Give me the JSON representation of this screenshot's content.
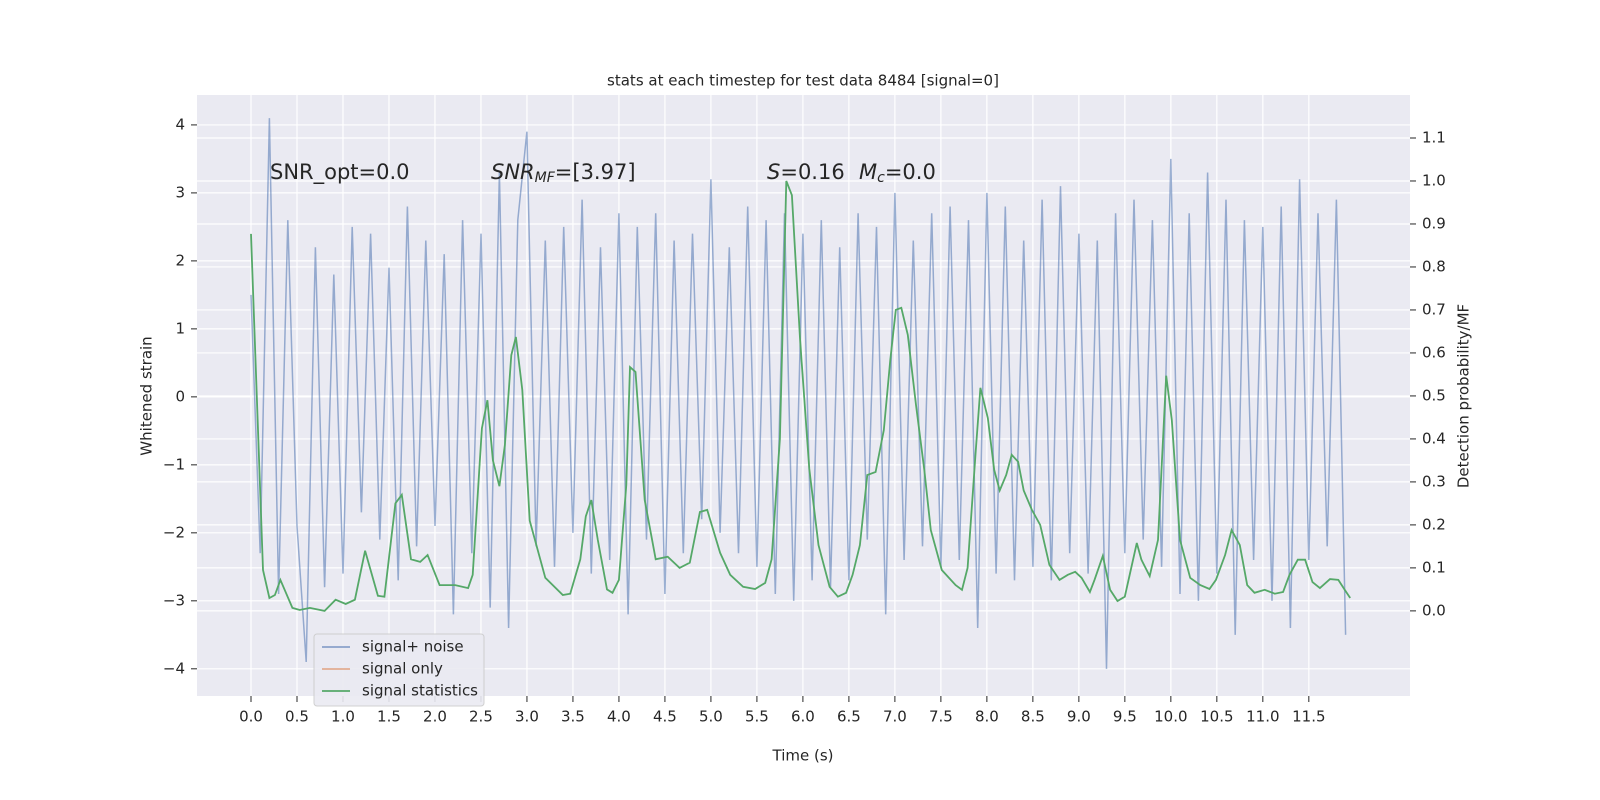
{
  "chart_data": {
    "type": "line",
    "title": "stats at each timestep for test data 8484 [signal=0]",
    "xlabel": "Time (s)",
    "ylabel": "Whitened strain",
    "y2label": "Detection probability/MF",
    "xlim": [
      -0.587,
      12.6
    ],
    "ylim": [
      -4.4,
      4.44
    ],
    "y2lim": [
      -0.198,
      1.2
    ],
    "xticks": [
      {
        "value": 0,
        "label": "0.0"
      },
      {
        "value": 0.5,
        "label": "0.5"
      },
      {
        "value": 1,
        "label": "1.0"
      },
      {
        "value": 1.5,
        "label": "1.5"
      },
      {
        "value": 2,
        "label": "2.0"
      },
      {
        "value": 2.5,
        "label": "2.5"
      },
      {
        "value": 3,
        "label": "3.0"
      },
      {
        "value": 3.5,
        "label": "3.5"
      },
      {
        "value": 4,
        "label": "4.0"
      },
      {
        "value": 4.5,
        "label": "4.5"
      },
      {
        "value": 5,
        "label": "5.0"
      },
      {
        "value": 5.5,
        "label": "5.5"
      },
      {
        "value": 6,
        "label": "6.0"
      },
      {
        "value": 6.5,
        "label": "6.5"
      },
      {
        "value": 7,
        "label": "7.0"
      },
      {
        "value": 7.5,
        "label": "7.5"
      },
      {
        "value": 8,
        "label": "8.0"
      },
      {
        "value": 8.5,
        "label": "8.5"
      },
      {
        "value": 9,
        "label": "9.0"
      },
      {
        "value": 9.5,
        "label": "9.5"
      },
      {
        "value": 10,
        "label": "10.0"
      },
      {
        "value": 10.5,
        "label": "10.5"
      },
      {
        "value": 11,
        "label": "11.0"
      },
      {
        "value": 11.5,
        "label": "11.5"
      }
    ],
    "yticks": [
      {
        "value": -4,
        "label": "−4"
      },
      {
        "value": -3,
        "label": "−3"
      },
      {
        "value": -2,
        "label": "−2"
      },
      {
        "value": -1,
        "label": "−1"
      },
      0,
      1,
      2,
      3,
      4
    ],
    "y2ticks": [
      {
        "value": 0,
        "label": "0.0"
      },
      {
        "value": 0.1,
        "label": "0.1"
      },
      {
        "value": 0.2,
        "label": "0.2"
      },
      {
        "value": 0.3,
        "label": "0.3"
      },
      {
        "value": 0.4,
        "label": "0.4"
      },
      {
        "value": 0.5,
        "label": "0.5"
      },
      {
        "value": 0.6,
        "label": "0.6"
      },
      {
        "value": 0.7,
        "label": "0.7"
      },
      {
        "value": 0.8,
        "label": "0.8"
      },
      {
        "value": 0.9,
        "label": "0.9"
      },
      {
        "value": 1,
        "label": "1.0"
      },
      {
        "value": 1.1,
        "label": "1.1"
      }
    ],
    "grid": true,
    "legend": "lower left",
    "annotations": [
      {
        "text": "SNR_opt=0.0"
      },
      {
        "base": "SNR",
        "sub": "MF",
        "rest": "=[3.97]"
      },
      {
        "base": "S",
        "rest": "=0.16"
      },
      {
        "base": "M",
        "sub": "c",
        "rest": "=0.0"
      }
    ],
    "series": [
      {
        "name": "signal+ noise",
        "color": "#4c72b0",
        "x": [
          0,
          0.1,
          0.2,
          0.3,
          0.4,
          0.5,
          0.6,
          0.7,
          0.8,
          0.9,
          1,
          1.1,
          1.2,
          1.3,
          1.4,
          1.5,
          1.6,
          1.7,
          1.8,
          1.9,
          2,
          2.1,
          2.2,
          2.3,
          2.4,
          2.5,
          2.6,
          2.7,
          2.8,
          2.9,
          3,
          3.1,
          3.2,
          3.3,
          3.4,
          3.5,
          3.6,
          3.7,
          3.8,
          3.9,
          4,
          4.1,
          4.2,
          4.3,
          4.4,
          4.5,
          4.6,
          4.7,
          4.8,
          4.9,
          5,
          5.1,
          5.2,
          5.3,
          5.4,
          5.5,
          5.6,
          5.7,
          5.8,
          5.9,
          6,
          6.1,
          6.2,
          6.3,
          6.4,
          6.5,
          6.6,
          6.7,
          6.8,
          6.9,
          7,
          7.1,
          7.2,
          7.3,
          7.4,
          7.5,
          7.6,
          7.7,
          7.8,
          7.9,
          8,
          8.1,
          8.2,
          8.3,
          8.4,
          8.5,
          8.6,
          8.7,
          8.8,
          8.9,
          9,
          9.1,
          9.2,
          9.3,
          9.4,
          9.5,
          9.6,
          9.7,
          9.8,
          9.9,
          10,
          10.1,
          10.2,
          10.3,
          10.4,
          10.5,
          10.6,
          10.7,
          10.8,
          10.9,
          11,
          11.1,
          11.2,
          11.3,
          11.4,
          11.5,
          11.6,
          11.7,
          11.8,
          11.9
        ],
        "values": [
          1.5,
          -2.3,
          4.1,
          -2.9,
          2.6,
          -1.9,
          -3.9,
          2.2,
          -2.8,
          1.8,
          -2.6,
          2.5,
          -1.7,
          2.4,
          -2.1,
          1.9,
          -2.7,
          2.8,
          -2.2,
          2.3,
          -1.9,
          2.1,
          -3.2,
          2.6,
          -2.3,
          2.4,
          -3.1,
          3.3,
          -3.4,
          2.6,
          3.9,
          -2.2,
          2.3,
          -2.5,
          2.5,
          -2.0,
          2.9,
          -2.6,
          2.2,
          -2.4,
          2.7,
          -3.2,
          2.5,
          -2.1,
          2.7,
          -2.9,
          2.3,
          -2.3,
          2.4,
          -1.8,
          3.2,
          -2.0,
          2.2,
          -2.3,
          2.8,
          -2.5,
          2.6,
          -2.9,
          2.7,
          -3.0,
          2.4,
          -2.7,
          2.6,
          -2.8,
          2.2,
          -2.7,
          2.7,
          -2.1,
          2.5,
          -3.2,
          3.0,
          -2.4,
          2.3,
          -2.2,
          2.7,
          -2.5,
          2.8,
          -2.4,
          2.6,
          -3.4,
          3.0,
          -2.6,
          2.8,
          -2.7,
          2.3,
          -2.5,
          2.9,
          -2.7,
          3.1,
          -2.3,
          2.4,
          -2.6,
          2.3,
          -4.0,
          2.7,
          -2.3,
          2.9,
          -2.1,
          2.6,
          -2.5,
          3.5,
          -2.9,
          2.7,
          -3.0,
          3.3,
          -2.6,
          2.9,
          -3.5,
          2.6,
          -2.4,
          2.5,
          -3.0,
          2.8,
          -3.4,
          3.2,
          -2.4,
          2.7,
          -2.2,
          2.9,
          -3.5
        ]
      },
      {
        "name": "signal only",
        "color": "#dd8452"
      },
      {
        "name": "signal statistics",
        "color": "#55a868",
        "axis": "y2",
        "x": [
          0,
          0.13,
          0.2,
          0.26,
          0.32,
          0.45,
          0.53,
          0.64,
          0.8,
          0.92,
          1.03,
          1.13,
          1.24,
          1.38,
          1.45,
          1.57,
          1.64,
          1.74,
          1.84,
          1.92,
          2.05,
          2.22,
          2.36,
          2.41,
          2.51,
          2.57,
          2.63,
          2.7,
          2.76,
          2.83,
          2.88,
          2.95,
          3.03,
          3.2,
          3.39,
          3.47,
          3.58,
          3.64,
          3.7,
          3.77,
          3.87,
          3.93,
          4,
          4.08,
          4.12,
          4.18,
          4.28,
          4.4,
          4.53,
          4.66,
          4.77,
          4.88,
          4.96,
          5.1,
          5.21,
          5.35,
          5.48,
          5.59,
          5.66,
          5.75,
          5.82,
          5.88,
          5.97,
          6.07,
          6.17,
          6.29,
          6.38,
          6.47,
          6.54,
          6.62,
          6.7,
          6.79,
          6.88,
          6.95,
          7.01,
          7.07,
          7.14,
          7.23,
          7.32,
          7.39,
          7.51,
          7.66,
          7.73,
          7.79,
          7.88,
          7.93,
          8.01,
          8.08,
          8.14,
          8.21,
          8.27,
          8.34,
          8.4,
          8.49,
          8.58,
          8.68,
          8.79,
          8.88,
          8.96,
          9.03,
          9.12,
          9.17,
          9.26,
          9.34,
          9.42,
          9.5,
          9.63,
          9.68,
          9.77,
          9.86,
          9.95,
          10.01,
          10.1,
          10.21,
          10.32,
          10.42,
          10.49,
          10.59,
          10.66,
          10.75,
          10.83,
          10.91,
          11.02,
          11.13,
          11.22,
          11.29,
          11.38,
          11.46,
          11.54,
          11.62,
          11.73,
          11.82,
          11.89,
          11.95
        ],
        "values": [
          0.877,
          0.095,
          0.03,
          0.037,
          0.072,
          0.007,
          0.002,
          0.007,
          0.0,
          0.026,
          0.016,
          0.026,
          0.14,
          0.035,
          0.033,
          0.25,
          0.27,
          0.12,
          0.114,
          0.13,
          0.06,
          0.06,
          0.053,
          0.084,
          0.425,
          0.49,
          0.35,
          0.29,
          0.386,
          0.595,
          0.637,
          0.514,
          0.21,
          0.077,
          0.037,
          0.04,
          0.12,
          0.22,
          0.258,
          0.165,
          0.05,
          0.042,
          0.072,
          0.293,
          0.567,
          0.556,
          0.258,
          0.12,
          0.126,
          0.1,
          0.112,
          0.23,
          0.235,
          0.135,
          0.084,
          0.056,
          0.051,
          0.065,
          0.12,
          0.4,
          1.0,
          0.967,
          0.63,
          0.33,
          0.153,
          0.056,
          0.033,
          0.042,
          0.084,
          0.153,
          0.316,
          0.323,
          0.42,
          0.584,
          0.7,
          0.705,
          0.642,
          0.479,
          0.328,
          0.188,
          0.095,
          0.06,
          0.049,
          0.1,
          0.374,
          0.519,
          0.449,
          0.328,
          0.28,
          0.316,
          0.363,
          0.347,
          0.28,
          0.235,
          0.2,
          0.107,
          0.072,
          0.084,
          0.091,
          0.077,
          0.044,
          0.072,
          0.128,
          0.049,
          0.023,
          0.033,
          0.158,
          0.119,
          0.081,
          0.165,
          0.547,
          0.444,
          0.165,
          0.077,
          0.06,
          0.051,
          0.072,
          0.13,
          0.188,
          0.153,
          0.06,
          0.042,
          0.049,
          0.04,
          0.044,
          0.084,
          0.119,
          0.119,
          0.067,
          0.053,
          0.074,
          0.072,
          0.049,
          0.03
        ]
      }
    ]
  }
}
